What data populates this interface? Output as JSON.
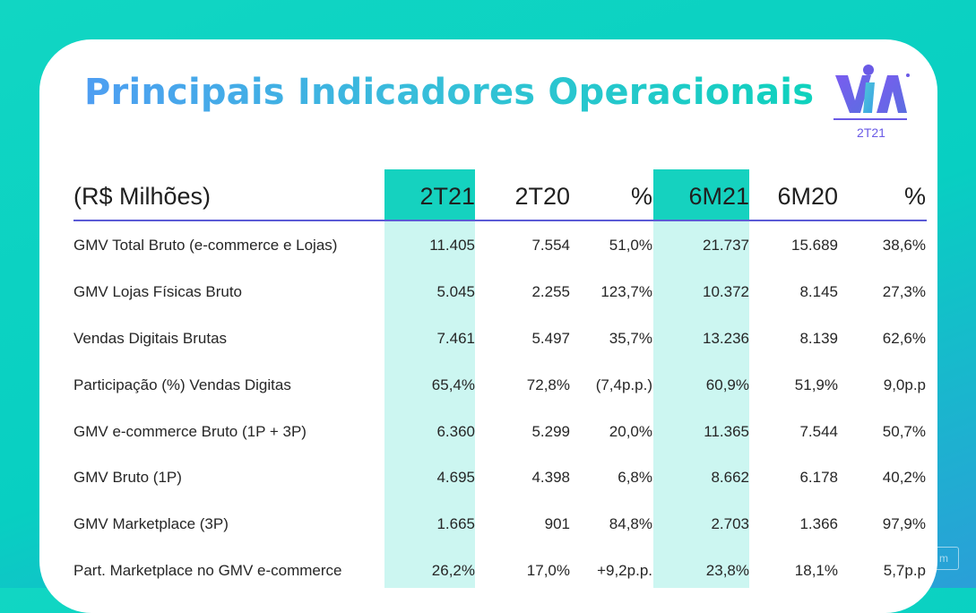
{
  "slide": {
    "title": "Principais Indicadores Operacionais",
    "logo_tag": "2T21",
    "colors": {
      "background": "#0fd3c2",
      "highlight_column_header": "#15d2bf",
      "highlight_column_body": "#ccf6f1",
      "header_rule": "#5b5bd6",
      "logo_purple": "#6a5ae6"
    }
  },
  "table": {
    "header": {
      "label": "(R$ Milhões)",
      "cols": [
        "2T21",
        "2T20",
        "%",
        "6M21",
        "6M20",
        "%"
      ]
    },
    "rows": [
      {
        "label": "GMV Total Bruto (e-commerce e Lojas)",
        "values": [
          "11.405",
          "7.554",
          "51,0%",
          "21.737",
          "15.689",
          "38,6%"
        ]
      },
      {
        "label": "GMV Lojas Físicas Bruto",
        "values": [
          "5.045",
          "2.255",
          "123,7%",
          "10.372",
          "8.145",
          "27,3%"
        ]
      },
      {
        "label": "Vendas Digitais Brutas",
        "values": [
          "7.461",
          "5.497",
          "35,7%",
          "13.236",
          "8.139",
          "62,6%"
        ]
      },
      {
        "label": "Participação (%) Vendas Digitas",
        "values": [
          "65,4%",
          "72,8%",
          "(7,4p.p.)",
          "60,9%",
          "51,9%",
          "9,0p.p"
        ]
      },
      {
        "label": "GMV e-commerce Bruto  (1P + 3P)",
        "values": [
          "6.360",
          "5.299",
          "20,0%",
          "11.365",
          "7.544",
          "50,7%"
        ]
      },
      {
        "label": "GMV  Bruto  (1P)",
        "values": [
          "4.695",
          "4.398",
          "6,8%",
          "8.662",
          "6.178",
          "40,2%"
        ]
      },
      {
        "label": "GMV Marketplace (3P)",
        "values": [
          "1.665",
          "901",
          "84,8%",
          "2.703",
          "1.366",
          "97,9%"
        ]
      },
      {
        "label": "Part. Marketplace no GMV e-commerce",
        "values": [
          "26,2%",
          "17,0%",
          "+9,2p.p.",
          "23,8%",
          "18,1%",
          "5,7p.p"
        ]
      }
    ]
  },
  "watermark": "m"
}
